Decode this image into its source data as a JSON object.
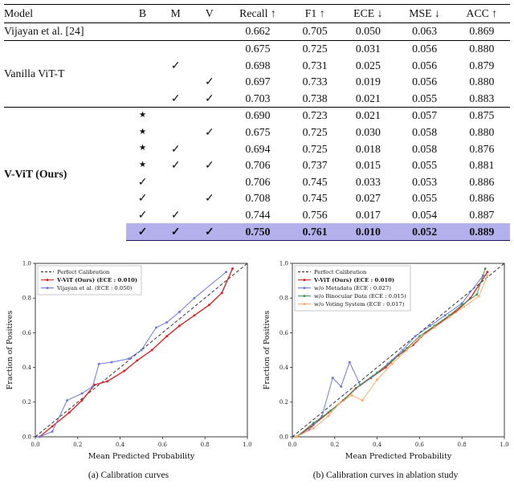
{
  "table": {
    "headers": [
      "Model",
      "B",
      "M",
      "V",
      "Recall ↑",
      "F1 ↑",
      "ECE ↓",
      "MSE ↓",
      "ACC ↑"
    ],
    "symbols": {
      "check": "✓",
      "star": "★"
    },
    "highlight_color": "#b3b0ec",
    "groups": [
      {
        "model": "Vijayan et al. [24]",
        "bold": false,
        "rows": [
          {
            "b": "",
            "m": "",
            "v": "",
            "vals": [
              "0.662",
              "0.705",
              "0.050",
              "0.063",
              "0.869"
            ]
          }
        ]
      },
      {
        "model": "Vanilla ViT-T",
        "bold": false,
        "rows": [
          {
            "b": "",
            "m": "",
            "v": "",
            "vals": [
              "0.675",
              "0.725",
              "0.031",
              "0.056",
              "0.880"
            ]
          },
          {
            "b": "",
            "m": "check",
            "v": "",
            "vals": [
              "0.698",
              "0.731",
              "0.025",
              "0.056",
              "0.879"
            ]
          },
          {
            "b": "",
            "m": "",
            "v": "check",
            "vals": [
              "0.697",
              "0.733",
              "0.019",
              "0.056",
              "0.880"
            ]
          },
          {
            "b": "",
            "m": "check",
            "v": "check",
            "vals": [
              "0.703",
              "0.738",
              "0.021",
              "0.055",
              "0.883"
            ]
          }
        ]
      },
      {
        "model": "V-ViT (Ours)",
        "bold": true,
        "rows": [
          {
            "b": "star",
            "m": "",
            "v": "",
            "vals": [
              "0.690",
              "0.723",
              "0.021",
              "0.057",
              "0.875"
            ]
          },
          {
            "b": "star",
            "m": "",
            "v": "check",
            "vals": [
              "0.675",
              "0.725",
              "0.030",
              "0.058",
              "0.880"
            ]
          },
          {
            "b": "star",
            "m": "check",
            "v": "",
            "vals": [
              "0.694",
              "0.725",
              "0.018",
              "0.058",
              "0.876"
            ]
          },
          {
            "b": "star",
            "m": "check",
            "v": "check",
            "vals": [
              "0.706",
              "0.737",
              "0.015",
              "0.055",
              "0.881"
            ]
          },
          {
            "b": "check",
            "m": "",
            "v": "",
            "vals": [
              "0.706",
              "0.745",
              "0.033",
              "0.053",
              "0.886"
            ]
          },
          {
            "b": "check",
            "m": "",
            "v": "check",
            "vals": [
              "0.708",
              "0.745",
              "0.027",
              "0.055",
              "0.886"
            ]
          },
          {
            "b": "check",
            "m": "check",
            "v": "",
            "vals": [
              "0.744",
              "0.756",
              "0.017",
              "0.054",
              "0.887"
            ]
          },
          {
            "b": "check",
            "m": "check",
            "v": "check",
            "highlight": true,
            "bold": true,
            "vals": [
              "0.750",
              "0.761",
              "0.010",
              "0.052",
              "0.889"
            ]
          }
        ]
      }
    ]
  },
  "chart_data": [
    {
      "type": "line",
      "caption": "(a) Calibration curves",
      "xlabel": "Mean Predicted Probability",
      "ylabel": "Fraction of Positives",
      "xlim": [
        0.0,
        1.0
      ],
      "ylim": [
        0.0,
        1.0
      ],
      "xticks": [
        0.0,
        0.2,
        0.4,
        0.6,
        0.8,
        1.0
      ],
      "yticks": [
        0.0,
        0.2,
        0.4,
        0.6,
        0.8,
        1.0
      ],
      "grid": false,
      "legend_position": "upper left",
      "series": [
        {
          "name": "Perfect Calibration",
          "color": "#333333",
          "dashed": true,
          "bold": false,
          "x": [
            0.0,
            1.0
          ],
          "y": [
            0.0,
            1.0
          ]
        },
        {
          "name": "V-ViT (Ours) (ECE : 0.010)",
          "color": "#d62828",
          "dashed": false,
          "bold": true,
          "x": [
            0.02,
            0.08,
            0.16,
            0.22,
            0.28,
            0.34,
            0.42,
            0.48,
            0.55,
            0.62,
            0.68,
            0.75,
            0.82,
            0.88,
            0.93
          ],
          "y": [
            0.0,
            0.06,
            0.14,
            0.21,
            0.3,
            0.32,
            0.38,
            0.44,
            0.5,
            0.58,
            0.64,
            0.7,
            0.76,
            0.83,
            0.97
          ]
        },
        {
          "name": "Vijayan et al. (ECE : 0.050)",
          "color": "#7079db",
          "dashed": false,
          "bold": false,
          "x": [
            0.02,
            0.08,
            0.15,
            0.22,
            0.27,
            0.3,
            0.36,
            0.44,
            0.5,
            0.57,
            0.62,
            0.68,
            0.75,
            0.9
          ],
          "y": [
            0.0,
            0.03,
            0.21,
            0.25,
            0.29,
            0.42,
            0.43,
            0.45,
            0.5,
            0.63,
            0.66,
            0.72,
            0.8,
            0.95
          ]
        }
      ]
    },
    {
      "type": "line",
      "caption": "(b) Calibration curves in ablation study",
      "xlabel": "Mean Predicted Probability",
      "ylabel": "Fraction of Positives",
      "xlim": [
        0.0,
        1.0
      ],
      "ylim": [
        0.0,
        1.0
      ],
      "xticks": [
        0.0,
        0.2,
        0.4,
        0.6,
        0.8,
        1.0
      ],
      "yticks": [
        0.0,
        0.2,
        0.4,
        0.6,
        0.8,
        1.0
      ],
      "grid": false,
      "legend_position": "upper left",
      "series": [
        {
          "name": "Perfect Calibration",
          "color": "#333333",
          "dashed": true,
          "bold": false,
          "x": [
            0.0,
            1.0
          ],
          "y": [
            0.0,
            1.0
          ]
        },
        {
          "name": "V-ViT (Ours) (ECE : 0.010)",
          "color": "#d62828",
          "dashed": false,
          "bold": true,
          "x": [
            0.02,
            0.1,
            0.17,
            0.24,
            0.3,
            0.37,
            0.44,
            0.5,
            0.57,
            0.63,
            0.7,
            0.77,
            0.84,
            0.92
          ],
          "y": [
            0.0,
            0.07,
            0.14,
            0.21,
            0.28,
            0.34,
            0.4,
            0.47,
            0.53,
            0.6,
            0.66,
            0.72,
            0.8,
            0.95
          ]
        },
        {
          "name": "w/o Metadata (ECE : 0.027)",
          "color": "#7079db",
          "dashed": false,
          "bold": false,
          "x": [
            0.02,
            0.08,
            0.14,
            0.19,
            0.23,
            0.27,
            0.32,
            0.38,
            0.45,
            0.52,
            0.58,
            0.65,
            0.72,
            0.8,
            0.9
          ],
          "y": [
            0.0,
            0.04,
            0.12,
            0.34,
            0.29,
            0.43,
            0.3,
            0.35,
            0.42,
            0.5,
            0.58,
            0.64,
            0.7,
            0.77,
            0.93
          ]
        },
        {
          "name": "w/o Binocular Data (ECE : 0.015)",
          "color": "#3f9a5f",
          "dashed": false,
          "bold": false,
          "x": [
            0.02,
            0.1,
            0.18,
            0.25,
            0.32,
            0.4,
            0.47,
            0.54,
            0.6,
            0.67,
            0.74,
            0.8,
            0.87,
            0.91
          ],
          "y": [
            0.0,
            0.08,
            0.15,
            0.22,
            0.3,
            0.37,
            0.44,
            0.51,
            0.58,
            0.64,
            0.7,
            0.76,
            0.82,
            0.97
          ]
        },
        {
          "name": "w/o Voting System (ECE : 0.017)",
          "color": "#fdae6a",
          "dashed": false,
          "bold": false,
          "x": [
            0.02,
            0.1,
            0.17,
            0.22,
            0.28,
            0.33,
            0.4,
            0.47,
            0.54,
            0.6,
            0.67,
            0.74,
            0.81,
            0.88,
            0.92
          ],
          "y": [
            0.0,
            0.05,
            0.12,
            0.19,
            0.24,
            0.21,
            0.33,
            0.42,
            0.5,
            0.57,
            0.63,
            0.69,
            0.75,
            0.81,
            0.93
          ]
        }
      ]
    }
  ]
}
